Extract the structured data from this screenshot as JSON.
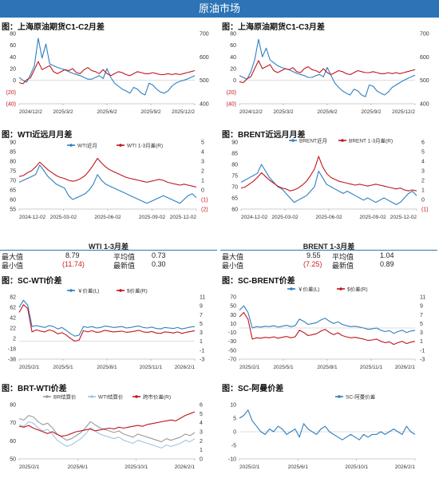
{
  "header": {
    "title": "原油市场"
  },
  "colors": {
    "banner": "#2d74b6",
    "blue": "#2d7fc1",
    "red": "#c0161d",
    "grey": "#9a9a9a",
    "lightblue": "#9ec5e3"
  },
  "sections": {
    "s1": "图：上海原油期货C1-C2月差",
    "s2": "图：上海原油期货C1-C3月差",
    "s3": "图：WTI近远月月差",
    "s4": "图：BRENT近远月月差",
    "s5": "图：SC-WTI价差",
    "s6": "图：SC-BRENT价差",
    "s7": "图：BRT-WTI价差",
    "s8": "图：SC-阿曼价差"
  },
  "stats": {
    "wti": {
      "title": "WTI 1-3月差",
      "max_label": "最大值",
      "max": "8.79",
      "avg_label": "平均值",
      "avg": "0.73",
      "min_label": "最小值",
      "min": "(11.74)",
      "latest_label": "最新值",
      "latest": "0.30"
    },
    "brent": {
      "title": "BRENT 1-3月差",
      "max_label": "最大值",
      "max": "9.55",
      "avg_label": "平均值",
      "avg": "1.04",
      "min_label": "最小值",
      "min": "(7.25)",
      "latest_label": "最新值",
      "latest": "0.89"
    }
  },
  "chart_data": [
    {
      "id": "c1",
      "type": "line",
      "x_ticks": [
        "2024/12/2",
        "2025/3/2",
        "2025/6/2",
        "2025/9/2",
        "2025/12/2"
      ],
      "y_left_ticks": [
        "80",
        "60",
        "40",
        "20",
        "0",
        "(20)",
        "(40)"
      ],
      "ylim_left": [
        -40,
        80
      ],
      "y_right_ticks": [
        "700",
        "600",
        "500",
        "400"
      ],
      "ylim_right": [
        350,
        700
      ],
      "series": [
        {
          "color": "blue",
          "axis": "left",
          "values": [
            5,
            0,
            -3,
            10,
            25,
            72,
            38,
            62,
            28,
            25,
            22,
            20,
            18,
            15,
            12,
            10,
            8,
            5,
            2,
            2,
            5,
            8,
            3,
            20,
            5,
            -5,
            -10,
            -15,
            -18,
            -22,
            -12,
            -15,
            -22,
            -25,
            -5,
            -8,
            -15,
            -20,
            -22,
            -18,
            -10,
            -5,
            -2,
            0,
            2,
            5,
            8
          ]
        },
        {
          "color": "red",
          "axis": "right",
          "values": [
            455,
            450,
            470,
            480,
            520,
            560,
            520,
            530,
            540,
            510,
            500,
            510,
            520,
            515,
            525,
            505,
            500,
            520,
            530,
            515,
            510,
            500,
            520,
            500,
            490,
            500,
            510,
            505,
            495,
            490,
            500,
            510,
            505,
            500,
            500,
            505,
            500,
            495,
            495,
            500,
            495,
            500,
            495,
            500,
            505,
            510,
            515
          ]
        }
      ]
    },
    {
      "id": "c2",
      "type": "line",
      "x_ticks": [
        "2024/12/2",
        "2025/3/2",
        "2025/6/2",
        "2025/9/2",
        "2025/12/2"
      ],
      "y_left_ticks": [
        "80",
        "60",
        "40",
        "20",
        "0",
        "(20)",
        "(40)"
      ],
      "ylim_left": [
        -40,
        80
      ],
      "y_right_ticks": [
        "700",
        "600",
        "500",
        "400"
      ],
      "ylim_right": [
        350,
        700
      ],
      "series": [
        {
          "color": "blue",
          "axis": "left",
          "values": [
            8,
            5,
            2,
            15,
            35,
            70,
            40,
            55,
            35,
            30,
            25,
            22,
            20,
            18,
            15,
            12,
            10,
            8,
            5,
            5,
            8,
            10,
            6,
            22,
            8,
            -5,
            -12,
            -18,
            -22,
            -25,
            -15,
            -18,
            -25,
            -28,
            -8,
            -10,
            -18,
            -22,
            -25,
            -20,
            -12,
            -8,
            -4,
            0,
            3,
            6,
            9
          ]
        },
        {
          "color": "red",
          "axis": "right",
          "values": [
            460,
            455,
            475,
            485,
            525,
            565,
            525,
            535,
            545,
            515,
            505,
            515,
            525,
            520,
            530,
            510,
            505,
            525,
            535,
            520,
            515,
            505,
            525,
            505,
            495,
            505,
            515,
            510,
            500,
            495,
            505,
            515,
            510,
            505,
            505,
            510,
            505,
            500,
            500,
            505,
            500,
            505,
            500,
            505,
            510,
            515,
            520
          ]
        }
      ]
    },
    {
      "id": "c3",
      "type": "line",
      "x_ticks": [
        "2024-12-02",
        "2025-03-02",
        "2025-06-02",
        "2025-09-02",
        "2025-12-02"
      ],
      "y_left_ticks": [
        "90",
        "85",
        "80",
        "75",
        "70",
        "65",
        "60",
        "55"
      ],
      "ylim_left": [
        55,
        90
      ],
      "y_right_ticks": [
        "5",
        "4",
        "3",
        "2",
        "1",
        "0",
        "(1)",
        "(2)"
      ],
      "ylim_right": [
        -2,
        5
      ],
      "legend": [
        "WTI近月",
        "WTI 1-3月差(R)"
      ],
      "series": [
        {
          "name": "WTI近月",
          "color": "blue",
          "axis": "left",
          "values": [
            69,
            70,
            71,
            72,
            73,
            78,
            75,
            72,
            70,
            68,
            67,
            66,
            62,
            60,
            61,
            62,
            63,
            65,
            68,
            73,
            70,
            68,
            67,
            66,
            65,
            64,
            63,
            62,
            61,
            60,
            59,
            58,
            59,
            60,
            61,
            62,
            61,
            60,
            59,
            58,
            60,
            62,
            63,
            61
          ]
        },
        {
          "name": "WTI 1-3月差(R)",
          "color": "red",
          "axis": "right",
          "values": [
            1.4,
            1.5,
            1.8,
            2.0,
            2.4,
            2.9,
            2.5,
            2.1,
            1.8,
            1.5,
            1.3,
            1.2,
            1.0,
            0.9,
            1.0,
            1.2,
            1.5,
            2.0,
            2.6,
            3.3,
            2.8,
            2.4,
            2.1,
            1.9,
            1.7,
            1.5,
            1.3,
            1.2,
            1.1,
            1.0,
            0.9,
            0.8,
            0.9,
            1.0,
            1.1,
            1.0,
            0.8,
            0.7,
            0.6,
            0.5,
            0.6,
            0.5,
            0.4,
            0.3
          ]
        }
      ]
    },
    {
      "id": "c4",
      "type": "line",
      "x_ticks": [
        "2024-12-02",
        "2025-03-02",
        "2025-06-02",
        "2025-09-02",
        "2025-12-02"
      ],
      "y_left_ticks": [
        "90",
        "85",
        "80",
        "75",
        "70",
        "65",
        "60"
      ],
      "ylim_left": [
        60,
        90
      ],
      "y_right_ticks": [
        "6",
        "5",
        "4",
        "3",
        "2",
        "1",
        "0",
        "(1)"
      ],
      "ylim_right": [
        -1,
        6
      ],
      "legend": [
        "BRENT近月",
        "BRENT 1-3月差(R)"
      ],
      "series": [
        {
          "name": "BRENT近月",
          "color": "blue",
          "axis": "left",
          "values": [
            72,
            73,
            74,
            75,
            76,
            80,
            77,
            74,
            72,
            70,
            69,
            67,
            65,
            63,
            64,
            65,
            66,
            68,
            70,
            77,
            74,
            71,
            70,
            69,
            68,
            67,
            68,
            67,
            66,
            65,
            64,
            65,
            64,
            63,
            64,
            65,
            64,
            63,
            62,
            63,
            65,
            67,
            68,
            66
          ]
        },
        {
          "name": "BRENT 1-3月差(R)",
          "color": "red",
          "axis": "right",
          "values": [
            1.2,
            1.3,
            1.6,
            1.9,
            2.3,
            2.8,
            2.4,
            2.0,
            1.7,
            1.4,
            1.2,
            1.1,
            0.9,
            1.0,
            1.2,
            1.5,
            1.9,
            2.5,
            3.2,
            4.5,
            3.4,
            2.7,
            2.3,
            2.1,
            1.9,
            1.8,
            1.7,
            1.6,
            1.5,
            1.6,
            1.5,
            1.4,
            1.5,
            1.6,
            1.5,
            1.4,
            1.3,
            1.2,
            1.1,
            1.2,
            1.0,
            0.9,
            1.0,
            0.9
          ]
        }
      ]
    },
    {
      "id": "c5",
      "type": "line",
      "x_ticks": [
        "2025/2/1",
        "2025/5/1",
        "2025/8/1",
        "2025/11/1",
        "2026/2/1"
      ],
      "y_left_ticks": [
        "82",
        "62",
        "42",
        "22",
        "2",
        "-18",
        "-38"
      ],
      "ylim_left": [
        -38,
        92
      ],
      "y_right_ticks": [
        "11",
        "9",
        "7",
        "5",
        "3",
        "1",
        "-1",
        "-3"
      ],
      "ylim_right": [
        -3,
        13
      ],
      "legend": [
        "￥价差(L)",
        "$价差(R)"
      ],
      "series": [
        {
          "name": "￥价差(L)",
          "color": "blue",
          "axis": "left",
          "values": [
            70,
            85,
            75,
            30,
            32,
            30,
            28,
            32,
            30,
            25,
            28,
            22,
            15,
            10,
            12,
            30,
            28,
            30,
            27,
            28,
            31,
            30,
            28,
            29,
            30,
            27,
            28,
            30,
            31,
            28,
            27,
            29,
            26,
            25,
            28,
            27,
            26,
            28,
            25,
            27,
            29,
            30
          ]
        },
        {
          "name": "$价差(R)",
          "color": "red",
          "axis": "right",
          "values": [
            9,
            11,
            10,
            4,
            4.5,
            4.2,
            4,
            4.5,
            4.2,
            3.5,
            3.8,
            3.2,
            2.3,
            1.6,
            1.9,
            4.3,
            4,
            4.3,
            3.9,
            4,
            4.4,
            4.2,
            4,
            4.1,
            4.2,
            3.9,
            4,
            4.2,
            4.4,
            4,
            3.9,
            4.1,
            3.7,
            3.6,
            4,
            3.9,
            3.7,
            4,
            3.6,
            3.9,
            4.1,
            4.3
          ]
        }
      ]
    },
    {
      "id": "c6",
      "type": "line",
      "x_ticks": [
        "2025/2/1",
        "2025/5/1",
        "2025/8/1",
        "2025/11/1",
        "2026/2/1"
      ],
      "y_left_ticks": [
        "70",
        "50",
        "30",
        "10",
        "-10",
        "-30",
        "-50",
        "-70"
      ],
      "ylim_left": [
        -70,
        70
      ],
      "y_right_ticks": [
        "11",
        "9",
        "7",
        "5",
        "3",
        "1",
        "-1",
        "-3"
      ],
      "ylim_right": [
        -3,
        11
      ],
      "legend": [
        "￥价差(L)",
        "$价差(R)"
      ],
      "series": [
        {
          "name": "￥价差(L)",
          "color": "blue",
          "axis": "left",
          "values": [
            40,
            50,
            35,
            0,
            3,
            2,
            4,
            3,
            5,
            2,
            4,
            6,
            3,
            5,
            20,
            15,
            8,
            10,
            12,
            18,
            22,
            15,
            10,
            14,
            8,
            5,
            3,
            4,
            2,
            0,
            -3,
            -2,
            0,
            -5,
            -8,
            -6,
            -12,
            -8,
            -5,
            -10,
            -7,
            -5
          ]
        },
        {
          "name": "$价差(R)",
          "color": "red",
          "axis": "right",
          "values": [
            6.5,
            7.5,
            6,
            1.5,
            1.8,
            1.7,
            1.9,
            1.8,
            2,
            1.7,
            1.9,
            2.1,
            1.8,
            2,
            3.5,
            3,
            2.3,
            2.5,
            2.7,
            3.3,
            3.7,
            3,
            2.5,
            2.9,
            2.3,
            2,
            1.8,
            1.9,
            1.7,
            1.5,
            1.2,
            1.3,
            1.5,
            1,
            0.7,
            0.9,
            0.3,
            0.7,
            1,
            0.5,
            0.8,
            1
          ]
        }
      ]
    },
    {
      "id": "c7",
      "type": "line",
      "x_ticks": [
        "2025/2/1",
        "2025/6/1",
        "2025/10/1",
        "2026/2/1"
      ],
      "y_left_ticks": [
        "80",
        "70",
        "60",
        "50"
      ],
      "ylim_left": [
        50,
        85
      ],
      "y_right_ticks": [
        "6",
        "5",
        "4",
        "3",
        "2",
        "1",
        "0"
      ],
      "ylim_right": [
        0,
        6
      ],
      "legend": [
        "BR结算价",
        "WTI结算价",
        "跨市价差(R)"
      ],
      "series": [
        {
          "name": "BR结算价",
          "color": "grey",
          "axis": "left",
          "values": [
            76,
            75,
            78,
            77,
            74,
            72,
            73,
            70,
            66,
            64,
            62,
            63,
            65,
            67,
            70,
            74,
            72,
            70,
            69,
            68,
            67,
            68,
            66,
            65,
            64,
            66,
            65,
            64,
            63,
            62,
            61,
            63,
            62,
            63,
            64,
            66,
            65,
            67
          ]
        },
        {
          "name": "WTI结算价",
          "color": "lightblue",
          "axis": "left",
          "values": [
            72,
            71,
            74,
            73,
            70,
            68,
            69,
            66,
            62,
            60,
            58,
            59,
            61,
            63,
            66,
            70,
            68,
            66,
            65,
            64,
            63,
            64,
            62,
            61,
            60,
            62,
            61,
            60,
            59,
            58,
            57,
            59,
            58,
            59,
            60,
            62,
            61,
            63
          ]
        },
        {
          "name": "跨市价差(R)",
          "color": "red",
          "axis": "right",
          "values": [
            3.6,
            3.5,
            3.7,
            3.4,
            3.2,
            3,
            2.8,
            3,
            2.7,
            2.5,
            2.6,
            2.8,
            3,
            3.1,
            3.2,
            3.3,
            3.1,
            3.2,
            3.3,
            3.4,
            3.3,
            3.5,
            3.4,
            3.5,
            3.6,
            3.7,
            3.6,
            3.8,
            3.9,
            4,
            4.1,
            4.2,
            4.3,
            4.2,
            4.5,
            4.8,
            5,
            5.2
          ]
        }
      ]
    },
    {
      "id": "c8",
      "type": "line",
      "x_ticks": [
        "2025/2/1",
        "2025/6/1",
        "2025/10/1",
        "2026/2/1"
      ],
      "y_left_ticks": [
        "10",
        "5",
        "0",
        "-5",
        "-10"
      ],
      "ylim_left": [
        -10,
        10
      ],
      "legend": [
        "SC-阿曼价差"
      ],
      "series": [
        {
          "name": "SC-阿曼价差",
          "color": "blue",
          "axis": "left",
          "values": [
            5,
            6,
            8,
            4,
            2,
            0,
            -1,
            1,
            0,
            2,
            1,
            -1,
            0,
            1,
            -2,
            3,
            1,
            0,
            -1,
            1,
            2,
            0,
            -1,
            -2,
            -3,
            -2,
            -1,
            -2,
            -3,
            -1,
            -2,
            -1,
            -1,
            0,
            -1,
            0,
            1,
            0,
            -1,
            2,
            0,
            -1
          ]
        }
      ]
    }
  ]
}
